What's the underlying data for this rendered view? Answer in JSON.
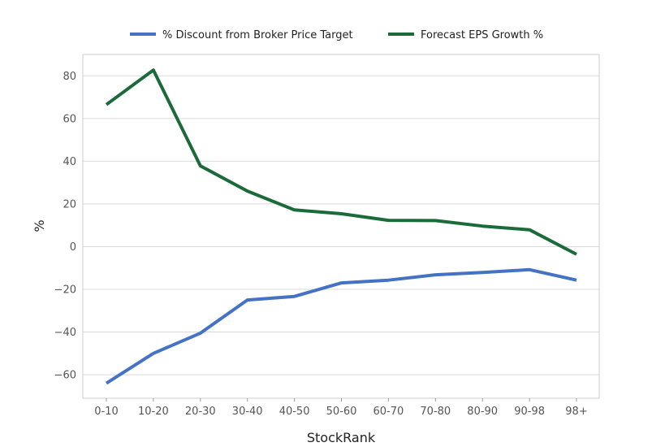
{
  "chart_data": {
    "type": "line",
    "categories": [
      "0-10",
      "10-20",
      "20-30",
      "30-40",
      "40-50",
      "50-60",
      "60-70",
      "70-80",
      "80-90",
      "90-98",
      "98+"
    ],
    "series": [
      {
        "name": "% Discount from Broker Price Target",
        "color": "#4472c4",
        "values": [
          -64,
          -50,
          -40.5,
          -25,
          -23.3,
          -17,
          -15.7,
          -13.2,
          -12.1,
          -10.8,
          -15.7
        ]
      },
      {
        "name": "Forecast EPS Growth %",
        "color": "#1b6b3a",
        "values": [
          66.5,
          82.7,
          37.8,
          26,
          17.2,
          15.4,
          12.3,
          12.2,
          9.6,
          7.9,
          -3.6
        ]
      }
    ],
    "xlabel": "StockRank",
    "ylabel": "%",
    "ylim": [
      -71,
      90
    ],
    "yticks": [
      -60,
      -40,
      -20,
      0,
      20,
      40,
      60,
      80
    ],
    "ytick_labels": [
      "−60",
      "−40",
      "−20",
      "0",
      "20",
      "40",
      "60",
      "80"
    ],
    "grid": "horizontal",
    "legend_position": "top-center"
  }
}
